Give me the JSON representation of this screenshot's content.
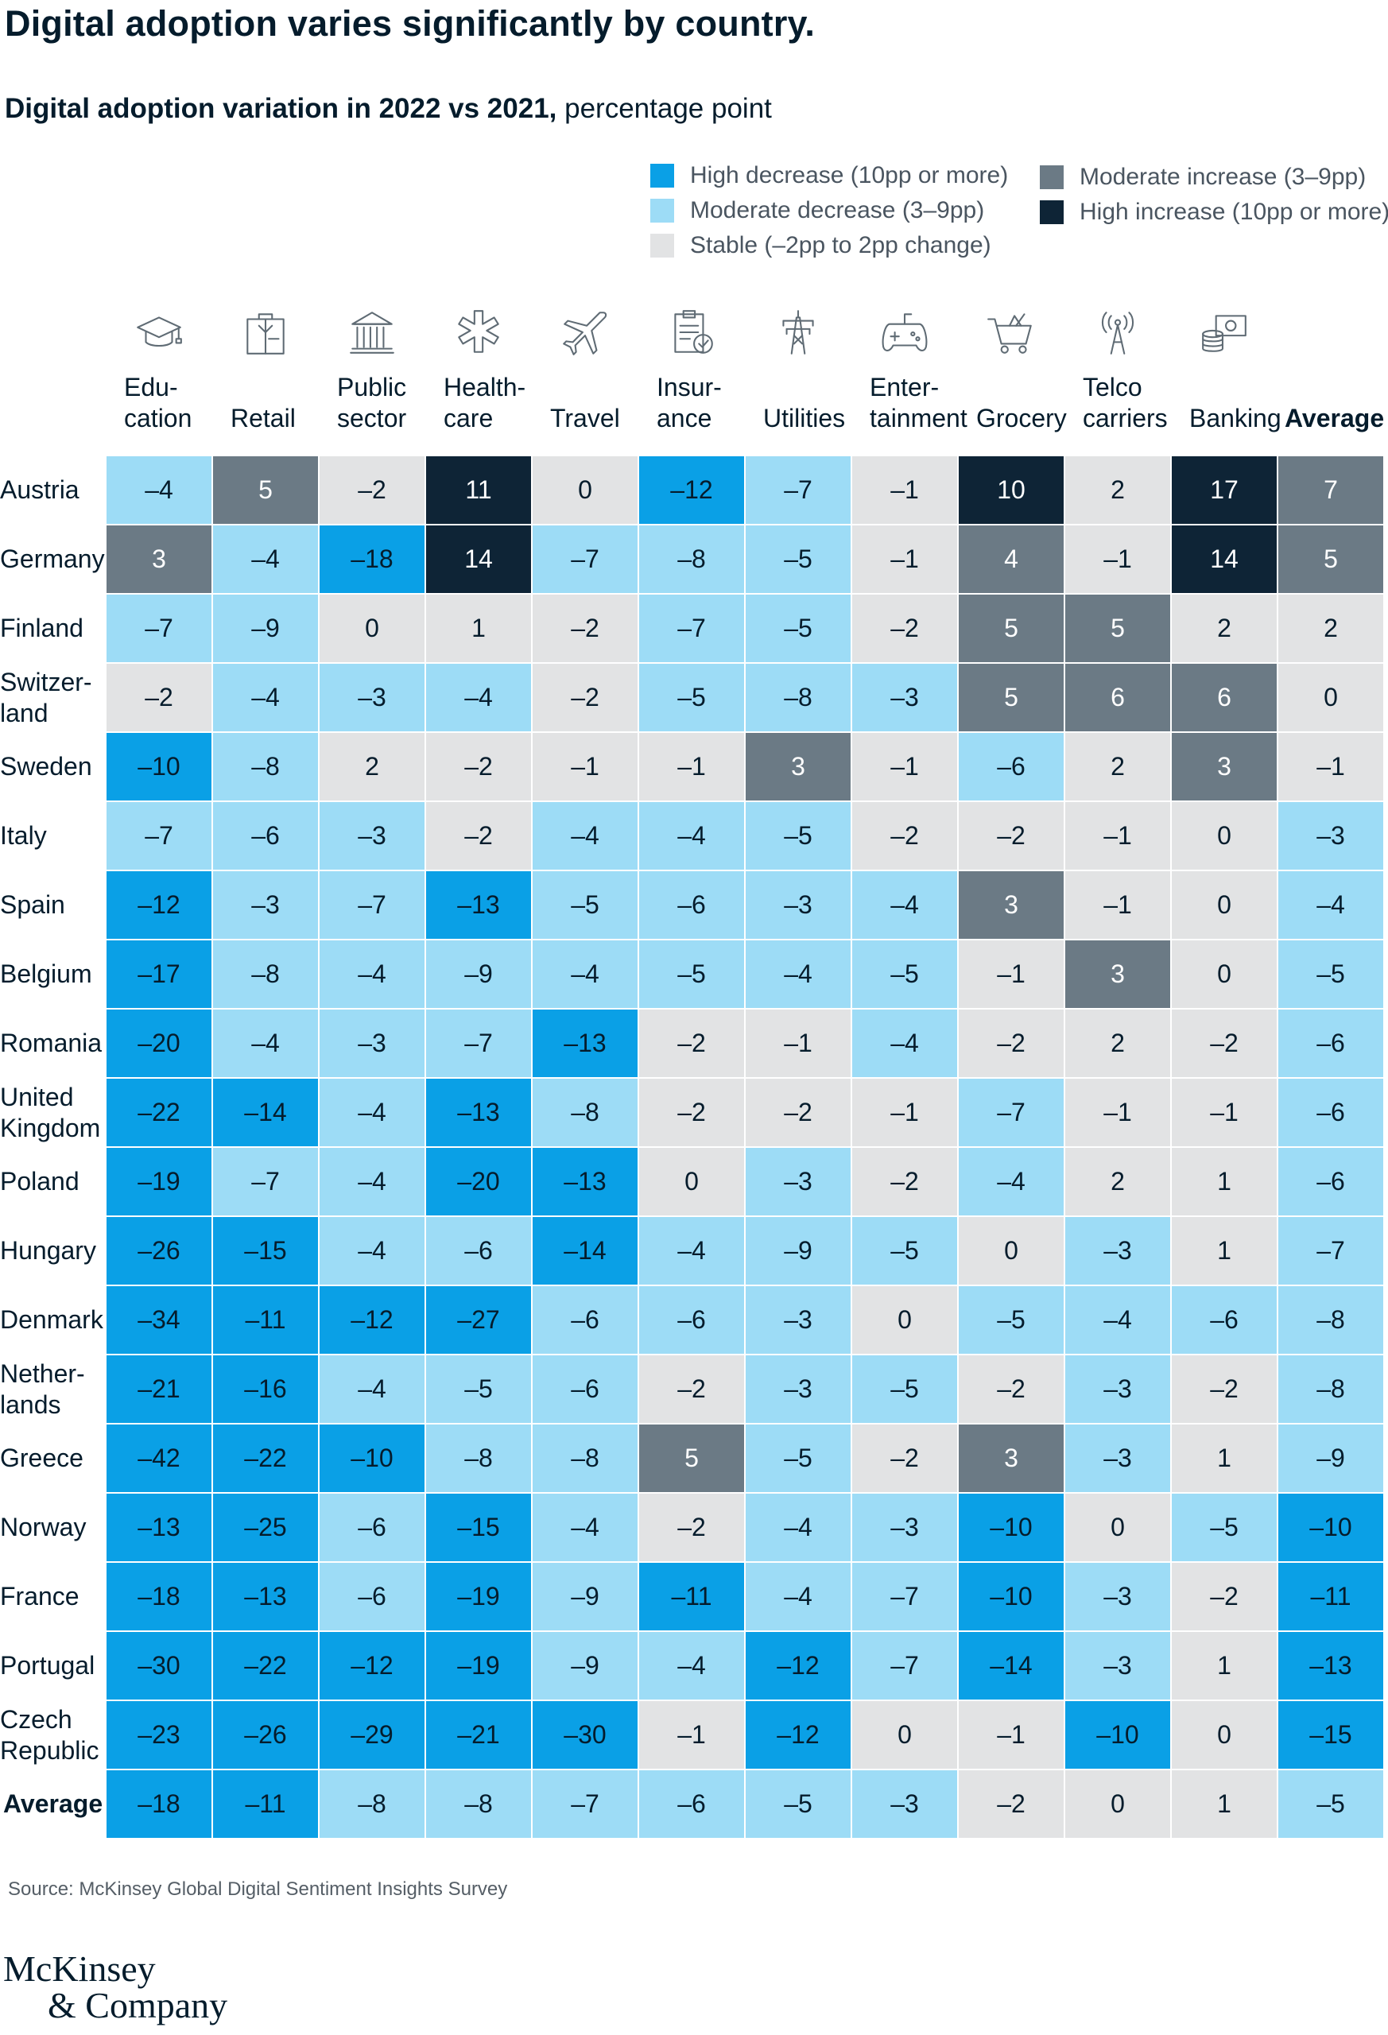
{
  "title": "Digital adoption varies significantly by country.",
  "subtitle_bold": "Digital adoption variation in 2022 vs 2021,",
  "subtitle_rest": " percentage point",
  "legend": [
    {
      "label": "High decrease (10pp or more)",
      "color": "#0aa0e6"
    },
    {
      "label": "Moderate decrease (3–9pp)",
      "color": "#9ddcf6"
    },
    {
      "label": "Stable (–2pp to 2pp change)",
      "color": "#e2e3e4"
    },
    {
      "label": "Moderate increase (3–9pp)",
      "color": "#6b7a85"
    },
    {
      "label": "High increase (10pp or more)",
      "color": "#0e2436"
    }
  ],
  "source": "Source: McKinsey Global Digital Sentiment Insights Survey",
  "brand": {
    "line1": "McKinsey",
    "line2": "& Company"
  },
  "chart_data": {
    "type": "heatmap",
    "title": "Digital adoption variation in 2022 vs 2021, percentage point",
    "columns": [
      {
        "label": [
          "Edu-",
          "cation"
        ],
        "icon": "graduation-cap-icon"
      },
      {
        "label": [
          "Retail"
        ],
        "icon": "shopping-bag-icon"
      },
      {
        "label": [
          "Public",
          "sector"
        ],
        "icon": "government-building-icon"
      },
      {
        "label": [
          "Health-",
          "care"
        ],
        "icon": "medical-star-icon"
      },
      {
        "label": [
          "Travel"
        ],
        "icon": "airplane-icon"
      },
      {
        "label": [
          "Insur-",
          "ance"
        ],
        "icon": "clipboard-check-icon"
      },
      {
        "label": [
          "Utilities"
        ],
        "icon": "power-pylon-icon"
      },
      {
        "label": [
          "Enter-",
          "tainment"
        ],
        "icon": "game-controller-icon"
      },
      {
        "label": [
          "Grocery"
        ],
        "icon": "shopping-cart-icon"
      },
      {
        "label": [
          "Telco",
          "carriers"
        ],
        "icon": "antenna-tower-icon"
      },
      {
        "label": [
          "Banking"
        ],
        "icon": "coins-banknote-icon"
      },
      {
        "label": [
          "Average"
        ],
        "icon": ""
      }
    ],
    "rows": [
      {
        "label": [
          "Austria"
        ],
        "values": [
          -4,
          5,
          -2,
          11,
          0,
          -12,
          -7,
          -1,
          10,
          2,
          17,
          7
        ]
      },
      {
        "label": [
          "Germany"
        ],
        "values": [
          3,
          -4,
          -18,
          14,
          -7,
          -8,
          -5,
          -1,
          4,
          -1,
          14,
          5
        ]
      },
      {
        "label": [
          "Finland"
        ],
        "values": [
          -7,
          -9,
          0,
          1,
          -2,
          -7,
          -5,
          -2,
          5,
          5,
          2,
          2
        ]
      },
      {
        "label": [
          "Switzer-",
          "land"
        ],
        "values": [
          -2,
          -4,
          -3,
          -4,
          -2,
          -5,
          -8,
          -3,
          5,
          6,
          6,
          0
        ]
      },
      {
        "label": [
          "Sweden"
        ],
        "values": [
          -10,
          -8,
          2,
          -2,
          -1,
          -1,
          3,
          -1,
          -6,
          2,
          3,
          -1
        ]
      },
      {
        "label": [
          "Italy"
        ],
        "values": [
          -7,
          -6,
          -3,
          -2,
          -4,
          -4,
          -5,
          -2,
          -2,
          -1,
          0,
          -3
        ]
      },
      {
        "label": [
          "Spain"
        ],
        "values": [
          -12,
          -3,
          -7,
          -13,
          -5,
          -6,
          -3,
          -4,
          3,
          -1,
          0,
          -4
        ]
      },
      {
        "label": [
          "Belgium"
        ],
        "values": [
          -17,
          -8,
          -4,
          -9,
          -4,
          -5,
          -4,
          -5,
          -1,
          3,
          0,
          -5
        ]
      },
      {
        "label": [
          "Romania"
        ],
        "values": [
          -20,
          -4,
          -3,
          -7,
          -13,
          -2,
          -1,
          -4,
          -2,
          2,
          -2,
          -6
        ]
      },
      {
        "label": [
          "United",
          "Kingdom"
        ],
        "values": [
          -22,
          -14,
          -4,
          -13,
          -8,
          -2,
          -2,
          -1,
          -7,
          -1,
          -1,
          -6
        ]
      },
      {
        "label": [
          "Poland"
        ],
        "values": [
          -19,
          -7,
          -4,
          -20,
          -13,
          0,
          -3,
          -2,
          -4,
          2,
          1,
          -6
        ]
      },
      {
        "label": [
          "Hungary"
        ],
        "values": [
          -26,
          -15,
          -4,
          -6,
          -14,
          -4,
          -9,
          -5,
          0,
          -3,
          1,
          -7
        ]
      },
      {
        "label": [
          "Denmark"
        ],
        "values": [
          -34,
          -11,
          -12,
          -27,
          -6,
          -6,
          -3,
          0,
          -5,
          -4,
          -6,
          -8
        ]
      },
      {
        "label": [
          "Nether-",
          "lands"
        ],
        "values": [
          -21,
          -16,
          -4,
          -5,
          -6,
          -2,
          -3,
          -5,
          -2,
          -3,
          -2,
          -8
        ]
      },
      {
        "label": [
          "Greece"
        ],
        "values": [
          -42,
          -22,
          -10,
          -8,
          -8,
          5,
          -5,
          -2,
          3,
          -3,
          1,
          -9
        ]
      },
      {
        "label": [
          "Norway"
        ],
        "values": [
          -13,
          -25,
          -6,
          -15,
          -4,
          -2,
          -4,
          -3,
          -10,
          0,
          -5,
          -10
        ]
      },
      {
        "label": [
          "France"
        ],
        "values": [
          -18,
          -13,
          -6,
          -19,
          -9,
          -11,
          -4,
          -7,
          -10,
          -3,
          -2,
          -11
        ]
      },
      {
        "label": [
          "Portugal"
        ],
        "values": [
          -30,
          -22,
          -12,
          -19,
          -9,
          -4,
          -12,
          -7,
          -14,
          -3,
          1,
          -13
        ]
      },
      {
        "label": [
          "Czech",
          "Republic"
        ],
        "values": [
          -23,
          -26,
          -29,
          -21,
          -30,
          -1,
          -12,
          0,
          -1,
          -10,
          0,
          -15
        ]
      },
      {
        "label": [
          "Average"
        ],
        "values": [
          -18,
          -11,
          -8,
          -8,
          -7,
          -6,
          -5,
          -3,
          -2,
          0,
          1,
          -5
        ]
      }
    ],
    "color_scale": {
      "high_decrease": "#0aa0e6",
      "moderate_decrease": "#9ddcf6",
      "stable": "#e2e3e4",
      "moderate_increase": "#6b7a85",
      "high_increase": "#0e2436"
    }
  }
}
